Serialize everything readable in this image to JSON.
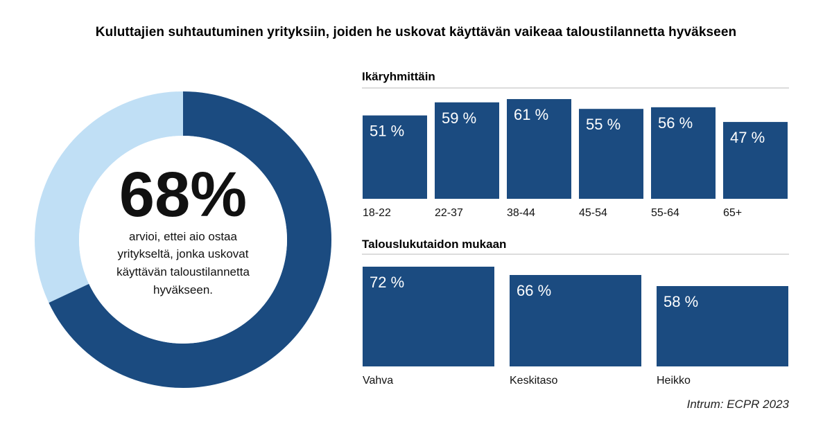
{
  "title": "Kuluttajien suhtautuminen yrityksiin, joiden he uskovat käyttävän vaikeaa  taloustilannetta hyväkseen",
  "donut": {
    "value_label": "68%",
    "value": 68,
    "description_lines": [
      "arvioi, ettei aio ostaa",
      "yritykseltä, jonka uskovat",
      "käyttävän taloustilannetta",
      "hyväkseen."
    ],
    "colors": {
      "main": "#1b4b80",
      "rest": "#c0dff5"
    }
  },
  "chart_data": [
    {
      "type": "bar",
      "title": "Ikäryhmittäin",
      "categories": [
        "18-22",
        "22-37",
        "38-44",
        "45-54",
        "55-64",
        "65+"
      ],
      "values": [
        51,
        59,
        61,
        55,
        56,
        47
      ],
      "value_labels": [
        "51 %",
        "59 %",
        "61 %",
        "55 %",
        "56 %",
        "47 %"
      ],
      "color": "#1b4b80"
    },
    {
      "type": "bar",
      "title": "Talouslukutaidon mukaan",
      "categories": [
        "Vahva",
        "Keskitaso",
        "Heikko"
      ],
      "values": [
        72,
        66,
        58
      ],
      "value_labels": [
        "72 %",
        "66 %",
        "58 %"
      ],
      "color": "#1b4b80"
    }
  ],
  "source": "Intrum: ECPR 2023"
}
